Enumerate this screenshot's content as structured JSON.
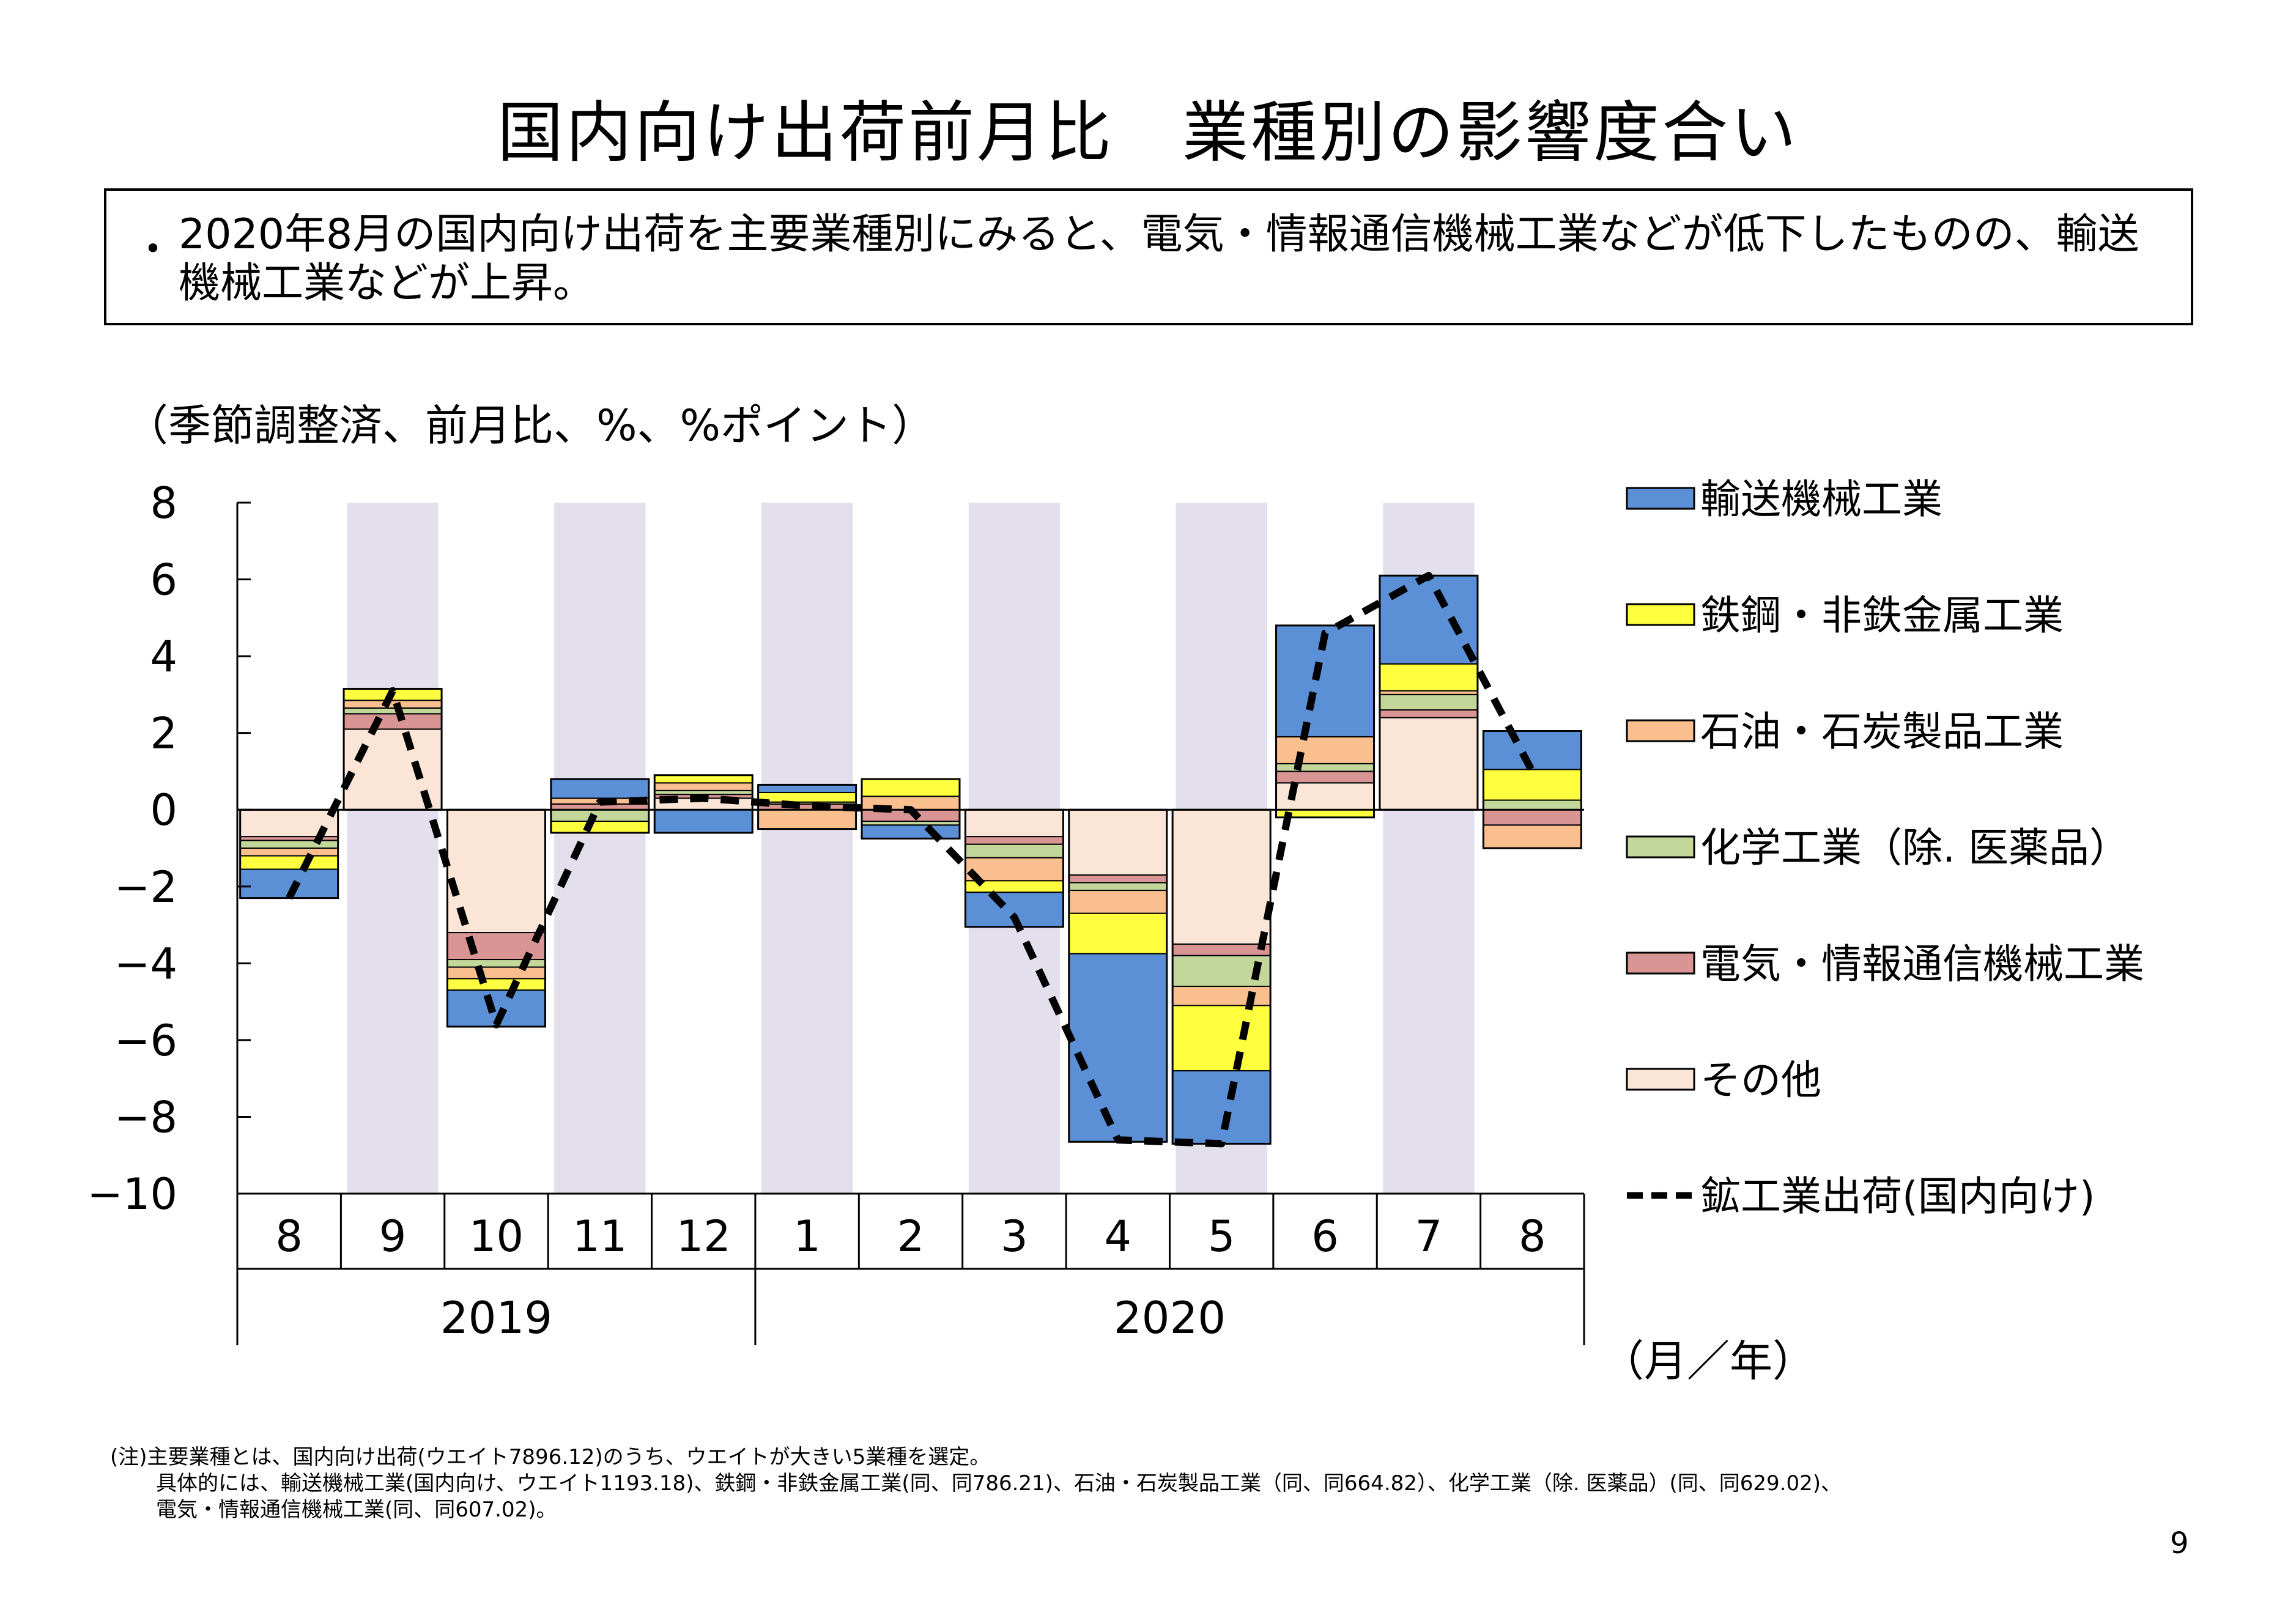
{
  "title": "国内向け出荷前月比　業種別の影響度合い",
  "summary": {
    "bullet": "・",
    "text": "2020年8月の国内向け出荷を主要業種別にみると、電気・情報通信機械工業などが低下したものの、輸送機械工業などが上昇。"
  },
  "unit_label": "（季節調整済、前月比、%、%ポイント）",
  "axis_unit": "（月／年）",
  "notes": [
    "(注)主要業種とは、国内向け出荷(ウエイト7896.12)のうち、ウエイトが大きい5業種を選定。",
    "具体的には、輸送機械工業(国内向け、ウエイト1193.18)、鉄鋼・非鉄金属工業(同、同786.21)、石油・石炭製品工業（同、同664.82）、化学工業（除. 医薬品）(同、同629.02)、",
    "電気・情報通信機械工業(同、同607.02)。"
  ],
  "page_number": "9",
  "chart_data": {
    "type": "bar",
    "stacked": true,
    "categories": [
      "8",
      "9",
      "10",
      "11",
      "12",
      "1",
      "2",
      "3",
      "4",
      "5",
      "6",
      "7",
      "8"
    ],
    "year_groups": [
      {
        "label": "2019",
        "start": 0,
        "end": 4
      },
      {
        "label": "2020",
        "start": 5,
        "end": 12
      }
    ],
    "shaded_categories": [
      1,
      3,
      5,
      7,
      9,
      11
    ],
    "ylim": [
      -10,
      8
    ],
    "yticks": [
      8,
      6,
      4,
      2,
      0,
      -2,
      -4,
      -6,
      -8,
      -10
    ],
    "ytick_labels": [
      "8",
      "6",
      "4",
      "2",
      "0",
      "−2",
      "−4",
      "−6",
      "−8",
      "−10"
    ],
    "grid": false,
    "legend_position": "right",
    "series": [
      {
        "name": "その他",
        "color": "#FBE5D6",
        "values": [
          -0.7,
          2.1,
          -3.2,
          0.0,
          0.3,
          0.0,
          0.0,
          -0.7,
          -1.7,
          -3.5,
          0.7,
          2.4,
          0.0
        ]
      },
      {
        "name": "電気・情報通信機械工業",
        "color": "#D99594",
        "values": [
          -0.1,
          0.4,
          -0.7,
          0.15,
          0.1,
          0.15,
          -0.3,
          -0.2,
          -0.2,
          -0.3,
          0.3,
          0.2,
          -0.4
        ]
      },
      {
        "name": "化学工業（除. 医薬品）",
        "color": "#C4D79B",
        "values": [
          -0.2,
          0.15,
          -0.2,
          -0.3,
          0.1,
          0.05,
          -0.1,
          -0.35,
          -0.2,
          -0.8,
          0.2,
          0.4,
          0.25
        ]
      },
      {
        "name": "石油・石炭製品工業",
        "color": "#FABF8F",
        "values": [
          -0.2,
          0.2,
          -0.3,
          0.15,
          0.2,
          -0.5,
          0.35,
          -0.6,
          -0.6,
          -0.5,
          0.7,
          0.1,
          -0.6
        ]
      },
      {
        "name": "鉄鋼・非鉄金属工業",
        "color": "#FFFF3F",
        "values": [
          -0.35,
          0.3,
          -0.3,
          -0.3,
          0.2,
          0.25,
          0.45,
          -0.3,
          -1.05,
          -1.7,
          -0.2,
          0.7,
          0.8
        ]
      },
      {
        "name": "輸送機械工業",
        "color": "#5B8FD6",
        "values": [
          -0.75,
          0.0,
          -0.95,
          0.5,
          -0.6,
          0.2,
          -0.35,
          -0.9,
          -4.9,
          -1.9,
          2.9,
          2.3,
          1.0
        ]
      }
    ],
    "line": {
      "name": "鉱工業出荷(国内向け)",
      "style": "dashed",
      "values": [
        -2.3,
        3.1,
        -5.6,
        0.2,
        0.3,
        0.1,
        0.0,
        -2.8,
        -8.6,
        -8.7,
        4.6,
        6.1,
        1.0
      ]
    },
    "legend_order": [
      "輸送機械工業",
      "鉄鋼・非鉄金属工業",
      "石油・石炭製品工業",
      "化学工業（除. 医薬品）",
      "電気・情報通信機械工業",
      "その他",
      "鉱工業出荷(国内向け)"
    ]
  }
}
